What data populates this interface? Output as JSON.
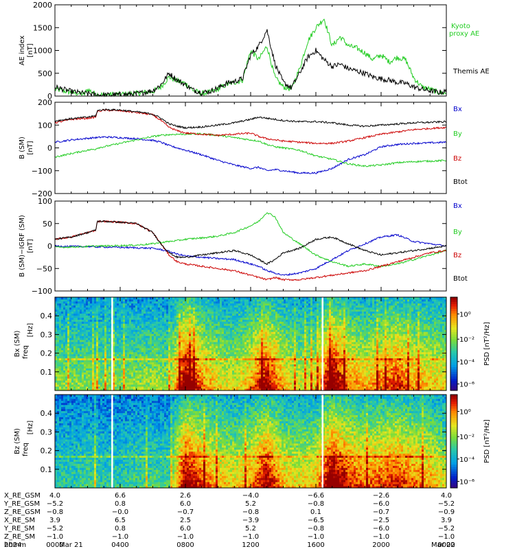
{
  "footer": {
    "rows": [
      {
        "label": "X_RE_GSM",
        "values": [
          "4.0",
          "6.6",
          "2.6",
          "−4.0",
          "−6.6",
          "−2.6",
          "4.0"
        ]
      },
      {
        "label": "Y_RE_GSM",
        "values": [
          "−5.2",
          "0.8",
          "6.0",
          "5.2",
          "−0.8",
          "−6.0",
          "−5.2"
        ]
      },
      {
        "label": "Z_RE_GSM",
        "values": [
          "−0.8",
          "−0.0",
          "−0.7",
          "−0.8",
          "0.1",
          "−0.7",
          "−0.9"
        ]
      },
      {
        "label": "X_RE_SM",
        "values": [
          "3.9",
          "6.5",
          "2.5",
          "−3.9",
          "−6.5",
          "−2.5",
          "3.9"
        ]
      },
      {
        "label": "Y_RE_SM",
        "values": [
          "−5.2",
          "0.8",
          "6.0",
          "5.2",
          "−0.8",
          "−6.0",
          "−5.2"
        ]
      },
      {
        "label": "Z_RE_SM",
        "values": [
          "−1.0",
          "−1.0",
          "−1.0",
          "−1.0",
          "−1.0",
          "−1.0",
          "−1.0"
        ]
      },
      {
        "label": "hhmm",
        "values": [
          "0000",
          "0400",
          "0800",
          "1200",
          "1600",
          "2000",
          "0000"
        ]
      }
    ],
    "year": "2024",
    "start_date": "Mar 21",
    "end_date": "Mar 22"
  },
  "chart_data": [
    {
      "type": "line",
      "panel": "ae",
      "ylabel": "AE index",
      "yunit": "[nT]",
      "ylim": [
        0,
        2000
      ],
      "yticks": [
        "0",
        "500",
        "1000",
        "1500",
        "2000"
      ],
      "x_unit": "hours since 2024-03-21 00:00",
      "x": [
        0,
        1,
        1.8,
        2,
        2.5,
        3,
        4,
        5,
        6,
        6.5,
        7,
        7.5,
        8,
        8.5,
        9,
        9.5,
        10,
        10.5,
        11,
        11.5,
        12,
        12.5,
        13,
        13.5,
        14,
        14.5,
        15,
        15.5,
        16,
        16.5,
        17,
        17.5,
        18,
        18.5,
        19,
        19.5,
        20,
        20.5,
        21,
        21.5,
        22,
        22.5,
        23,
        23.5,
        24
      ],
      "series": [
        {
          "name": "Kyoto proxy AE",
          "color": "#22cc22",
          "values": [
            150,
            80,
            40,
            150,
            40,
            30,
            40,
            60,
            100,
            200,
            420,
            330,
            280,
            120,
            60,
            80,
            150,
            250,
            300,
            350,
            1000,
            800,
            1100,
            400,
            200,
            150,
            600,
            1200,
            1500,
            1700,
            1100,
            1300,
            1100,
            1050,
            950,
            800,
            900,
            750,
            850,
            800,
            400,
            200,
            150,
            80,
            60
          ]
        },
        {
          "name": "Themis AE",
          "color": "#000000",
          "values": [
            200,
            100,
            60,
            60,
            30,
            20,
            30,
            50,
            120,
            250,
            500,
            350,
            250,
            130,
            80,
            100,
            180,
            280,
            320,
            380,
            900,
            1100,
            1450,
            700,
            300,
            180,
            500,
            850,
            1000,
            800,
            650,
            700,
            600,
            550,
            500,
            420,
            380,
            350,
            300,
            280,
            200,
            150,
            120,
            80,
            100
          ]
        }
      ]
    },
    {
      "type": "line",
      "panel": "b",
      "ylabel": "B (SM)",
      "yunit": "[nT]",
      "ylim": [
        -200,
        200
      ],
      "yticks": [
        "−200",
        "−100",
        "0",
        "100",
        "200"
      ],
      "x_unit": "hours since 2024-03-21 00:00",
      "x": [
        0,
        1,
        2,
        2.5,
        2.6,
        3,
        4,
        5,
        6,
        6.5,
        7,
        7.5,
        8,
        9,
        10,
        11,
        12,
        12.5,
        13,
        13.5,
        14,
        15,
        16,
        17,
        18,
        19,
        20,
        21,
        22,
        23,
        24
      ],
      "series": [
        {
          "name": "Bx",
          "color": "#0000cc",
          "values": [
            25,
            35,
            42,
            45,
            45,
            48,
            45,
            40,
            33,
            25,
            10,
            0,
            -10,
            -30,
            -55,
            -75,
            -90,
            -85,
            -100,
            -95,
            -100,
            -110,
            -110,
            -90,
            -50,
            -30,
            5,
            15,
            20,
            22,
            25
          ]
        },
        {
          "name": "By",
          "color": "#22cc22",
          "values": [
            -40,
            -25,
            -10,
            -5,
            0,
            5,
            20,
            35,
            50,
            55,
            58,
            60,
            60,
            62,
            55,
            45,
            35,
            30,
            15,
            5,
            0,
            -10,
            -35,
            -50,
            -70,
            -80,
            -75,
            -65,
            -60,
            -58,
            -55
          ]
        },
        {
          "name": "Bz",
          "color": "#cc0000",
          "values": [
            110,
            125,
            130,
            135,
            160,
            165,
            163,
            155,
            145,
            120,
            90,
            75,
            65,
            60,
            55,
            60,
            65,
            50,
            40,
            35,
            30,
            25,
            20,
            20,
            30,
            45,
            60,
            70,
            80,
            85,
            90
          ]
        },
        {
          "name": "Btot",
          "color": "#000000",
          "values": [
            118,
            128,
            135,
            140,
            163,
            168,
            166,
            158,
            148,
            130,
            105,
            95,
            88,
            92,
            100,
            110,
            125,
            135,
            130,
            125,
            120,
            115,
            115,
            110,
            100,
            95,
            100,
            105,
            110,
            112,
            115
          ]
        }
      ]
    },
    {
      "type": "line",
      "panel": "db",
      "ylabel": "B (SM)−IGRF (SM)",
      "yunit": "[nT]",
      "ylim": [
        -100,
        100
      ],
      "yticks": [
        "−100",
        "−50",
        "0",
        "50",
        "100"
      ],
      "x_unit": "hours since 2024-03-21 00:00",
      "x": [
        0,
        1,
        2,
        2.5,
        2.6,
        3,
        4,
        5,
        6,
        6.5,
        7,
        7.5,
        8,
        9,
        10,
        11,
        12,
        12.5,
        13,
        13.5,
        14,
        15,
        16,
        17,
        18,
        19,
        20,
        21,
        22,
        23,
        24
      ],
      "series": [
        {
          "name": "Bx",
          "color": "#0000cc",
          "values": [
            0,
            -1,
            -1,
            -2,
            -2,
            -2,
            -3,
            -4,
            -5,
            -8,
            -12,
            -18,
            -22,
            -25,
            -28,
            -30,
            -40,
            -45,
            -55,
            -60,
            -65,
            -60,
            -50,
            -30,
            -10,
            5,
            20,
            25,
            10,
            5,
            0
          ]
        },
        {
          "name": "By",
          "color": "#22cc22",
          "values": [
            -3,
            -2,
            -1,
            0,
            0,
            0,
            1,
            2,
            5,
            8,
            10,
            12,
            15,
            18,
            22,
            30,
            45,
            55,
            75,
            65,
            30,
            5,
            -20,
            -35,
            -45,
            -40,
            -45,
            -40,
            -30,
            -20,
            -10
          ]
        },
        {
          "name": "Bz",
          "color": "#cc0000",
          "values": [
            15,
            20,
            30,
            35,
            55,
            55,
            53,
            50,
            30,
            5,
            -20,
            -35,
            -40,
            -45,
            -50,
            -55,
            -65,
            -70,
            -75,
            -70,
            -75,
            -75,
            -70,
            -65,
            -60,
            -55,
            -45,
            -35,
            -25,
            -15,
            -10
          ]
        },
        {
          "name": "Btot",
          "color": "#000000",
          "values": [
            15,
            20,
            30,
            35,
            55,
            55,
            53,
            50,
            30,
            5,
            -15,
            -25,
            -25,
            -20,
            -15,
            -10,
            -20,
            -30,
            -40,
            -30,
            -15,
            -5,
            15,
            20,
            5,
            -10,
            -20,
            -15,
            -10,
            -5,
            0
          ]
        }
      ]
    },
    {
      "type": "heatmap",
      "panel": "psd_bx",
      "ylabel": "Bx (SM)",
      "ylabel2": "freq",
      "yunit": "[Hz]",
      "ylim": [
        0,
        0.5
      ],
      "yticks": [
        "0.1",
        "0.2",
        "0.3",
        "0.4"
      ],
      "colorbar_label": "PSD [nT²/Hz]",
      "colorbar_ticks": [
        "10⁰",
        "10⁻²",
        "10⁻⁴",
        "10⁻⁶"
      ],
      "x_unit": "hours since 2024-03-21 00:00",
      "activity_hours": [
        0,
        1,
        2,
        3,
        4,
        5,
        6,
        7,
        8,
        9,
        10,
        11,
        12,
        13,
        14,
        15,
        16,
        17,
        18,
        19,
        20,
        21,
        22,
        23,
        24
      ],
      "activity_level": [
        0.3,
        0.3,
        0.3,
        0.3,
        0.3,
        0.3,
        0.35,
        0.3,
        0.9,
        0.6,
        0.45,
        0.4,
        0.55,
        0.8,
        0.5,
        0.4,
        0.45,
        0.9,
        0.6,
        0.5,
        0.6,
        0.7,
        0.55,
        0.5,
        0.45
      ],
      "data_gaps_hours": [
        3.5,
        16.4
      ]
    },
    {
      "type": "heatmap",
      "panel": "psd_bz",
      "ylabel": "Bz (SM)",
      "ylabel2": "freq",
      "yunit": "[Hz]",
      "ylim": [
        0,
        0.5
      ],
      "yticks": [
        "0.1",
        "0.2",
        "0.3",
        "0.4"
      ],
      "colorbar_label": "PSD [nT²/Hz]",
      "colorbar_ticks": [
        "10⁰",
        "10⁻²",
        "10⁻⁴",
        "10⁻⁶"
      ],
      "x_unit": "hours since 2024-03-21 00:00",
      "activity_hours": [
        0,
        1,
        2,
        3,
        4,
        5,
        6,
        7,
        8,
        9,
        10,
        11,
        12,
        13,
        14,
        15,
        16,
        17,
        18,
        19,
        20,
        21,
        22,
        23,
        24
      ],
      "activity_level": [
        0.15,
        0.15,
        0.2,
        0.15,
        0.15,
        0.2,
        0.2,
        0.2,
        0.85,
        0.65,
        0.5,
        0.45,
        0.55,
        0.8,
        0.5,
        0.45,
        0.5,
        0.9,
        0.7,
        0.6,
        0.65,
        0.7,
        0.6,
        0.55,
        0.4
      ],
      "data_gaps_hours": [
        3.5,
        16.4
      ]
    }
  ]
}
